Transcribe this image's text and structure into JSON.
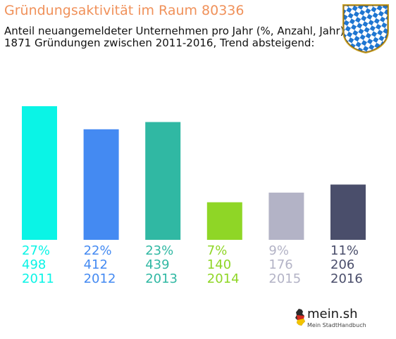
{
  "header": {
    "title": "Gründungsaktivität im Raum 80336",
    "subtitle_line1": "Anteil neuangemeldeter Unternehmen pro Jahr (%, Anzahl, Jahr)",
    "subtitle_line2": "1871 Gründungen zwischen 2011-2016, Trend absteigend:"
  },
  "crest": {
    "icon": "bavaria-crest-icon"
  },
  "logo": {
    "brand": "mein",
    "brand_suffix": ".sh",
    "tagline": "Mein StadtHandbuch",
    "icon": "germany-map-icon"
  },
  "chart_data": {
    "type": "bar",
    "categories": [
      "2011",
      "2012",
      "2013",
      "2014",
      "2015",
      "2016"
    ],
    "series": [
      {
        "values": [
          27,
          22,
          23,
          7,
          9,
          11
        ]
      }
    ],
    "counts": [
      498,
      412,
      439,
      140,
      176,
      206
    ],
    "percent_labels": [
      "27%",
      "22%",
      "23%",
      "7%",
      "9%",
      "11%"
    ],
    "count_labels": [
      "498",
      "412",
      "439",
      "140",
      "176",
      "206"
    ],
    "colors": [
      "#0af4e6",
      "#448af2",
      "#30b8a3",
      "#8fd626",
      "#b3b3c6",
      "#4a4e6b"
    ],
    "ylim": [
      0,
      498
    ],
    "grid": false,
    "legend": "none"
  }
}
